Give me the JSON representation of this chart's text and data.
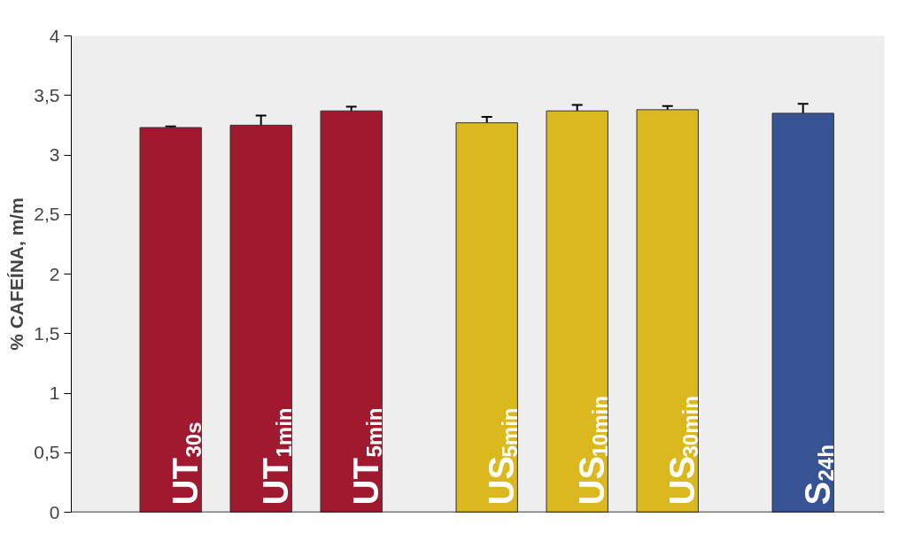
{
  "chart_data": {
    "type": "bar",
    "ylabel": "% CAFEÍNA, m/m",
    "categories": [
      "UT$_{30s}$",
      "UT$_{1min}$",
      "UT$_{5min}$",
      "US$_{5min}$",
      "US$_{10min}$",
      "US$_{30min}$",
      "S$_{24h}$"
    ],
    "values": [
      3.23,
      3.25,
      3.37,
      3.27,
      3.37,
      3.38,
      3.35
    ],
    "errors": [
      0.01,
      0.08,
      0.035,
      0.05,
      0.05,
      0.03,
      0.08
    ],
    "colors": [
      "#a0192e",
      "#a0192e",
      "#a0192e",
      "#dcb81f",
      "#dcb81f",
      "#dcb81f",
      "#375394"
    ],
    "ylim": [
      0,
      4
    ],
    "yticks": [
      0,
      {
        "value": 0.5,
        "label": "0,5"
      },
      1,
      {
        "value": 1.5,
        "label": "1,5"
      },
      2,
      {
        "value": 2.5,
        "label": "2,5"
      },
      3,
      {
        "value": 3.5,
        "label": "3,5"
      },
      4
    ],
    "grid": false
  }
}
